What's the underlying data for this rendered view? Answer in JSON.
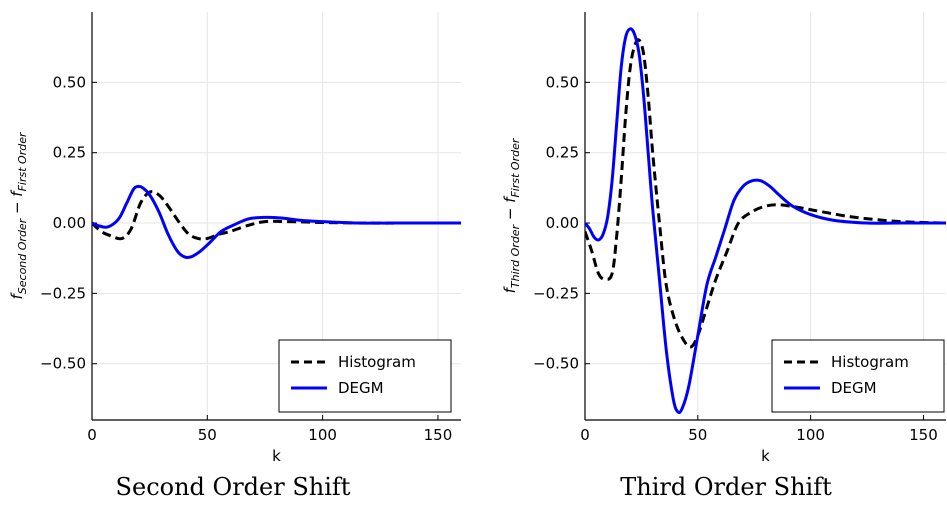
{
  "chart_data": [
    {
      "type": "line",
      "caption": "Second Order Shift",
      "xlabel": "k",
      "ylabel": {
        "base": "f",
        "sub1": "Second Order",
        "minus": "−",
        "sub2": "First Order"
      },
      "xlim": [
        0,
        160
      ],
      "ylim": [
        -0.7,
        0.75
      ],
      "xticks": [
        0,
        50,
        100,
        150
      ],
      "xtick_labels": [
        "0",
        "50",
        "100",
        "150"
      ],
      "yticks": [
        -0.5,
        -0.25,
        0.0,
        0.25,
        0.5
      ],
      "ytick_labels": [
        "−0.50",
        "−0.25",
        "0.00",
        "0.25",
        "0.50"
      ],
      "grid": true,
      "legend_position": "bottom-right",
      "series": [
        {
          "name": "Histogram",
          "color": "#000000",
          "dash": "dashed",
          "x": [
            0,
            4,
            8,
            13,
            17,
            21,
            25,
            29,
            33,
            38,
            42,
            46,
            50,
            55,
            60,
            67,
            75,
            85,
            100,
            120,
            140,
            160
          ],
          "y": [
            0.0,
            -0.03,
            -0.045,
            -0.055,
            -0.02,
            0.07,
            0.11,
            0.1,
            0.06,
            0.0,
            -0.04,
            -0.055,
            -0.055,
            -0.04,
            -0.03,
            -0.01,
            0.005,
            0.005,
            0.002,
            0.0,
            0.0,
            0.0
          ]
        },
        {
          "name": "DEGM",
          "color": "#0000ff",
          "dash": "solid",
          "x": [
            0,
            3,
            6,
            9,
            12,
            15,
            18,
            20,
            22,
            25,
            29,
            33,
            37,
            40,
            43,
            47,
            51,
            56,
            62,
            68,
            75,
            82,
            90,
            100,
            115,
            130,
            160
          ],
          "y": [
            0.0,
            -0.01,
            -0.015,
            -0.005,
            0.02,
            0.07,
            0.12,
            0.13,
            0.125,
            0.1,
            0.04,
            -0.04,
            -0.1,
            -0.12,
            -0.12,
            -0.1,
            -0.07,
            -0.03,
            -0.005,
            0.015,
            0.02,
            0.018,
            0.01,
            0.005,
            0.0,
            0.0,
            0.0
          ]
        }
      ]
    },
    {
      "type": "line",
      "caption": "Third Order Shift",
      "xlabel": "k",
      "ylabel": {
        "base": "f",
        "sub1": "Third Order",
        "minus": "−",
        "sub2": "First Order"
      },
      "xlim": [
        0,
        160
      ],
      "ylim": [
        -0.7,
        0.75
      ],
      "xticks": [
        0,
        50,
        100,
        150
      ],
      "xtick_labels": [
        "0",
        "50",
        "100",
        "150"
      ],
      "yticks": [
        -0.5,
        -0.25,
        0.0,
        0.25,
        0.5
      ],
      "ytick_labels": [
        "−0.50",
        "−0.25",
        "0.00",
        "0.25",
        "0.50"
      ],
      "grid": true,
      "legend_position": "bottom-right",
      "series": [
        {
          "name": "Histogram",
          "color": "#000000",
          "dash": "dashed",
          "x": [
            0,
            3,
            6,
            9,
            12,
            14,
            16,
            18,
            20,
            22,
            24,
            26,
            28,
            30,
            33,
            36,
            40,
            44,
            47,
            50,
            54,
            58,
            63,
            68,
            74,
            80,
            86,
            95,
            105,
            120,
            140,
            160
          ],
          "y": [
            -0.03,
            -0.1,
            -0.18,
            -0.2,
            -0.18,
            -0.05,
            0.15,
            0.38,
            0.55,
            0.63,
            0.65,
            0.6,
            0.45,
            0.25,
            0.0,
            -0.22,
            -0.35,
            -0.42,
            -0.44,
            -0.4,
            -0.3,
            -0.2,
            -0.1,
            0.0,
            0.04,
            0.06,
            0.065,
            0.055,
            0.04,
            0.02,
            0.005,
            0.0
          ]
        },
        {
          "name": "DEGM",
          "color": "#0000ff",
          "dash": "solid",
          "x": [
            0,
            2,
            4,
            6,
            8,
            10,
            12,
            14,
            16,
            18,
            20,
            22,
            24,
            26,
            28,
            30,
            33,
            36,
            39,
            41,
            43,
            46,
            50,
            54,
            58,
            62,
            66,
            70,
            74,
            78,
            82,
            86,
            92,
            100,
            110,
            125,
            140,
            160
          ],
          "y": [
            0.0,
            -0.02,
            -0.05,
            -0.06,
            -0.04,
            0.02,
            0.15,
            0.35,
            0.55,
            0.66,
            0.69,
            0.67,
            0.6,
            0.45,
            0.25,
            0.05,
            -0.2,
            -0.45,
            -0.62,
            -0.67,
            -0.66,
            -0.58,
            -0.4,
            -0.22,
            -0.12,
            -0.02,
            0.08,
            0.13,
            0.15,
            0.15,
            0.13,
            0.1,
            0.06,
            0.03,
            0.01,
            0.0,
            0.0,
            0.0
          ]
        }
      ]
    }
  ]
}
